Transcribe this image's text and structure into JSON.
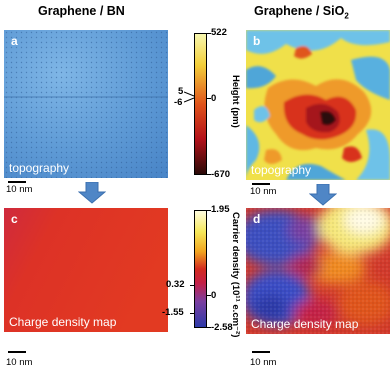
{
  "headers": {
    "left": "Graphene / BN",
    "right_main": "Graphene / SiO",
    "right_sub": "2"
  },
  "panels": {
    "a": {
      "letter": "a",
      "caption": "topography",
      "scale": "10 nm"
    },
    "b": {
      "letter": "b",
      "caption": "topography",
      "scale": "10 nm"
    },
    "c": {
      "letter": "c",
      "caption": "Charge density map",
      "scale": "10 nm"
    },
    "d": {
      "letter": "d",
      "caption": "Charge density map",
      "scale": "10 nm"
    }
  },
  "height_bar": {
    "label": "Height (pm)",
    "max": "522",
    "min": "-670",
    "bn_top": "5",
    "bn_bottom": "-6",
    "zero": "0",
    "colors": [
      "#f7f7b0",
      "#f3cf3a",
      "#e0541b",
      "#b3111a",
      "#2a0a08"
    ]
  },
  "density_bar": {
    "label": "Carrier density (10¹¹ e.cm⁻²)",
    "max": "1.95",
    "min": "-2.58",
    "mid_pos": "0.32",
    "mid_neg": "-1.55",
    "zero": "0",
    "colors": [
      "#fffde0",
      "#f6e85a",
      "#f1a41f",
      "#d22a1f",
      "#c42046",
      "#7a3fa0",
      "#2d3aa8"
    ]
  },
  "colors": {
    "bn_topo": "#5f9bd6",
    "sio2_blue": "#4767cf",
    "sio2_red": "#d42b25",
    "arrow": "#4f86c6"
  }
}
